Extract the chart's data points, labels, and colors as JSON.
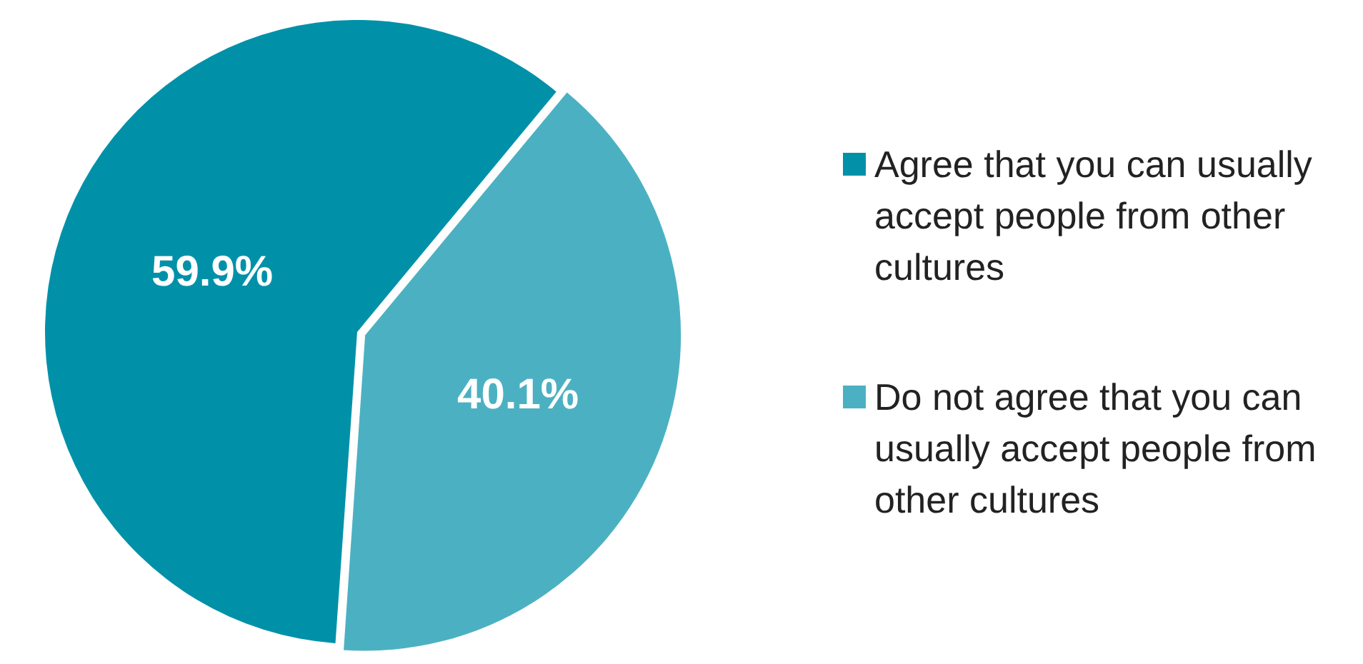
{
  "chart_data": {
    "type": "pie",
    "categories": [
      "Agree that you can usually accept people from other cultures",
      "Do not agree that you can usually accept people from other cultures"
    ],
    "values": [
      59.9,
      40.1
    ],
    "colors": [
      "#0091a9",
      "#4bb1c2"
    ],
    "value_labels": [
      "59.9%",
      "40.1%"
    ],
    "legend": "right"
  }
}
